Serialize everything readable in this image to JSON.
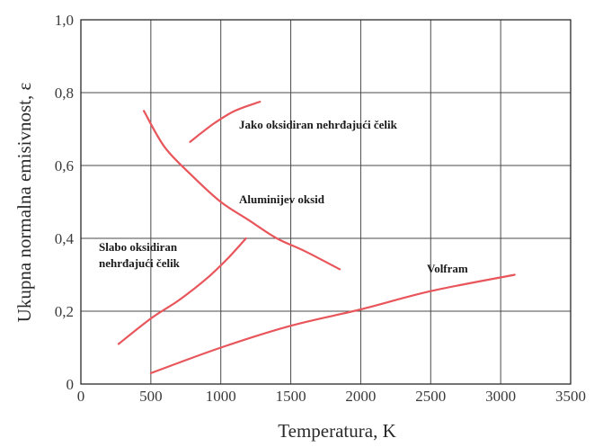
{
  "chart_data": {
    "type": "line",
    "xlabel": "Temperatura, K",
    "ylabel": "Ukupna normalna emisivnost, ε",
    "xlim": [
      0,
      3500
    ],
    "ylim": [
      0,
      1.0
    ],
    "x_ticks": [
      "0",
      "500",
      "1000",
      "1500",
      "2000",
      "2500",
      "3000",
      "3500"
    ],
    "y_ticks": [
      "0",
      "0,2",
      "0,4",
      "0,6",
      "0,8",
      "1,0"
    ],
    "grid": true,
    "line_color": "#e8565b",
    "series": [
      {
        "name": "Jako oksidiran nehrđajući čelik",
        "label_lines": [
          "Jako oksidiran nehrđajući čelik"
        ],
        "x": [
          780,
          950,
          1100,
          1280
        ],
        "y": [
          0.665,
          0.715,
          0.75,
          0.775
        ]
      },
      {
        "name": "Aluminijev oksid",
        "label_lines": [
          "Aluminijev oksid"
        ],
        "x": [
          450,
          600,
          800,
          1000,
          1200,
          1400,
          1600,
          1850
        ],
        "y": [
          0.75,
          0.65,
          0.57,
          0.5,
          0.45,
          0.4,
          0.365,
          0.315
        ]
      },
      {
        "name": "Slabo oksidiran nehrđajući čelik",
        "label_lines": [
          "Slabo oksidiran",
          "nehrđajući čelik"
        ],
        "x": [
          270,
          500,
          700,
          900,
          1050,
          1180
        ],
        "y": [
          0.11,
          0.18,
          0.23,
          0.29,
          0.345,
          0.4
        ]
      },
      {
        "name": "Volfram",
        "label_lines": [
          "Volfram"
        ],
        "x": [
          500,
          1000,
          1500,
          2000,
          2500,
          3100
        ],
        "y": [
          0.03,
          0.1,
          0.16,
          0.205,
          0.255,
          0.3
        ]
      }
    ]
  }
}
